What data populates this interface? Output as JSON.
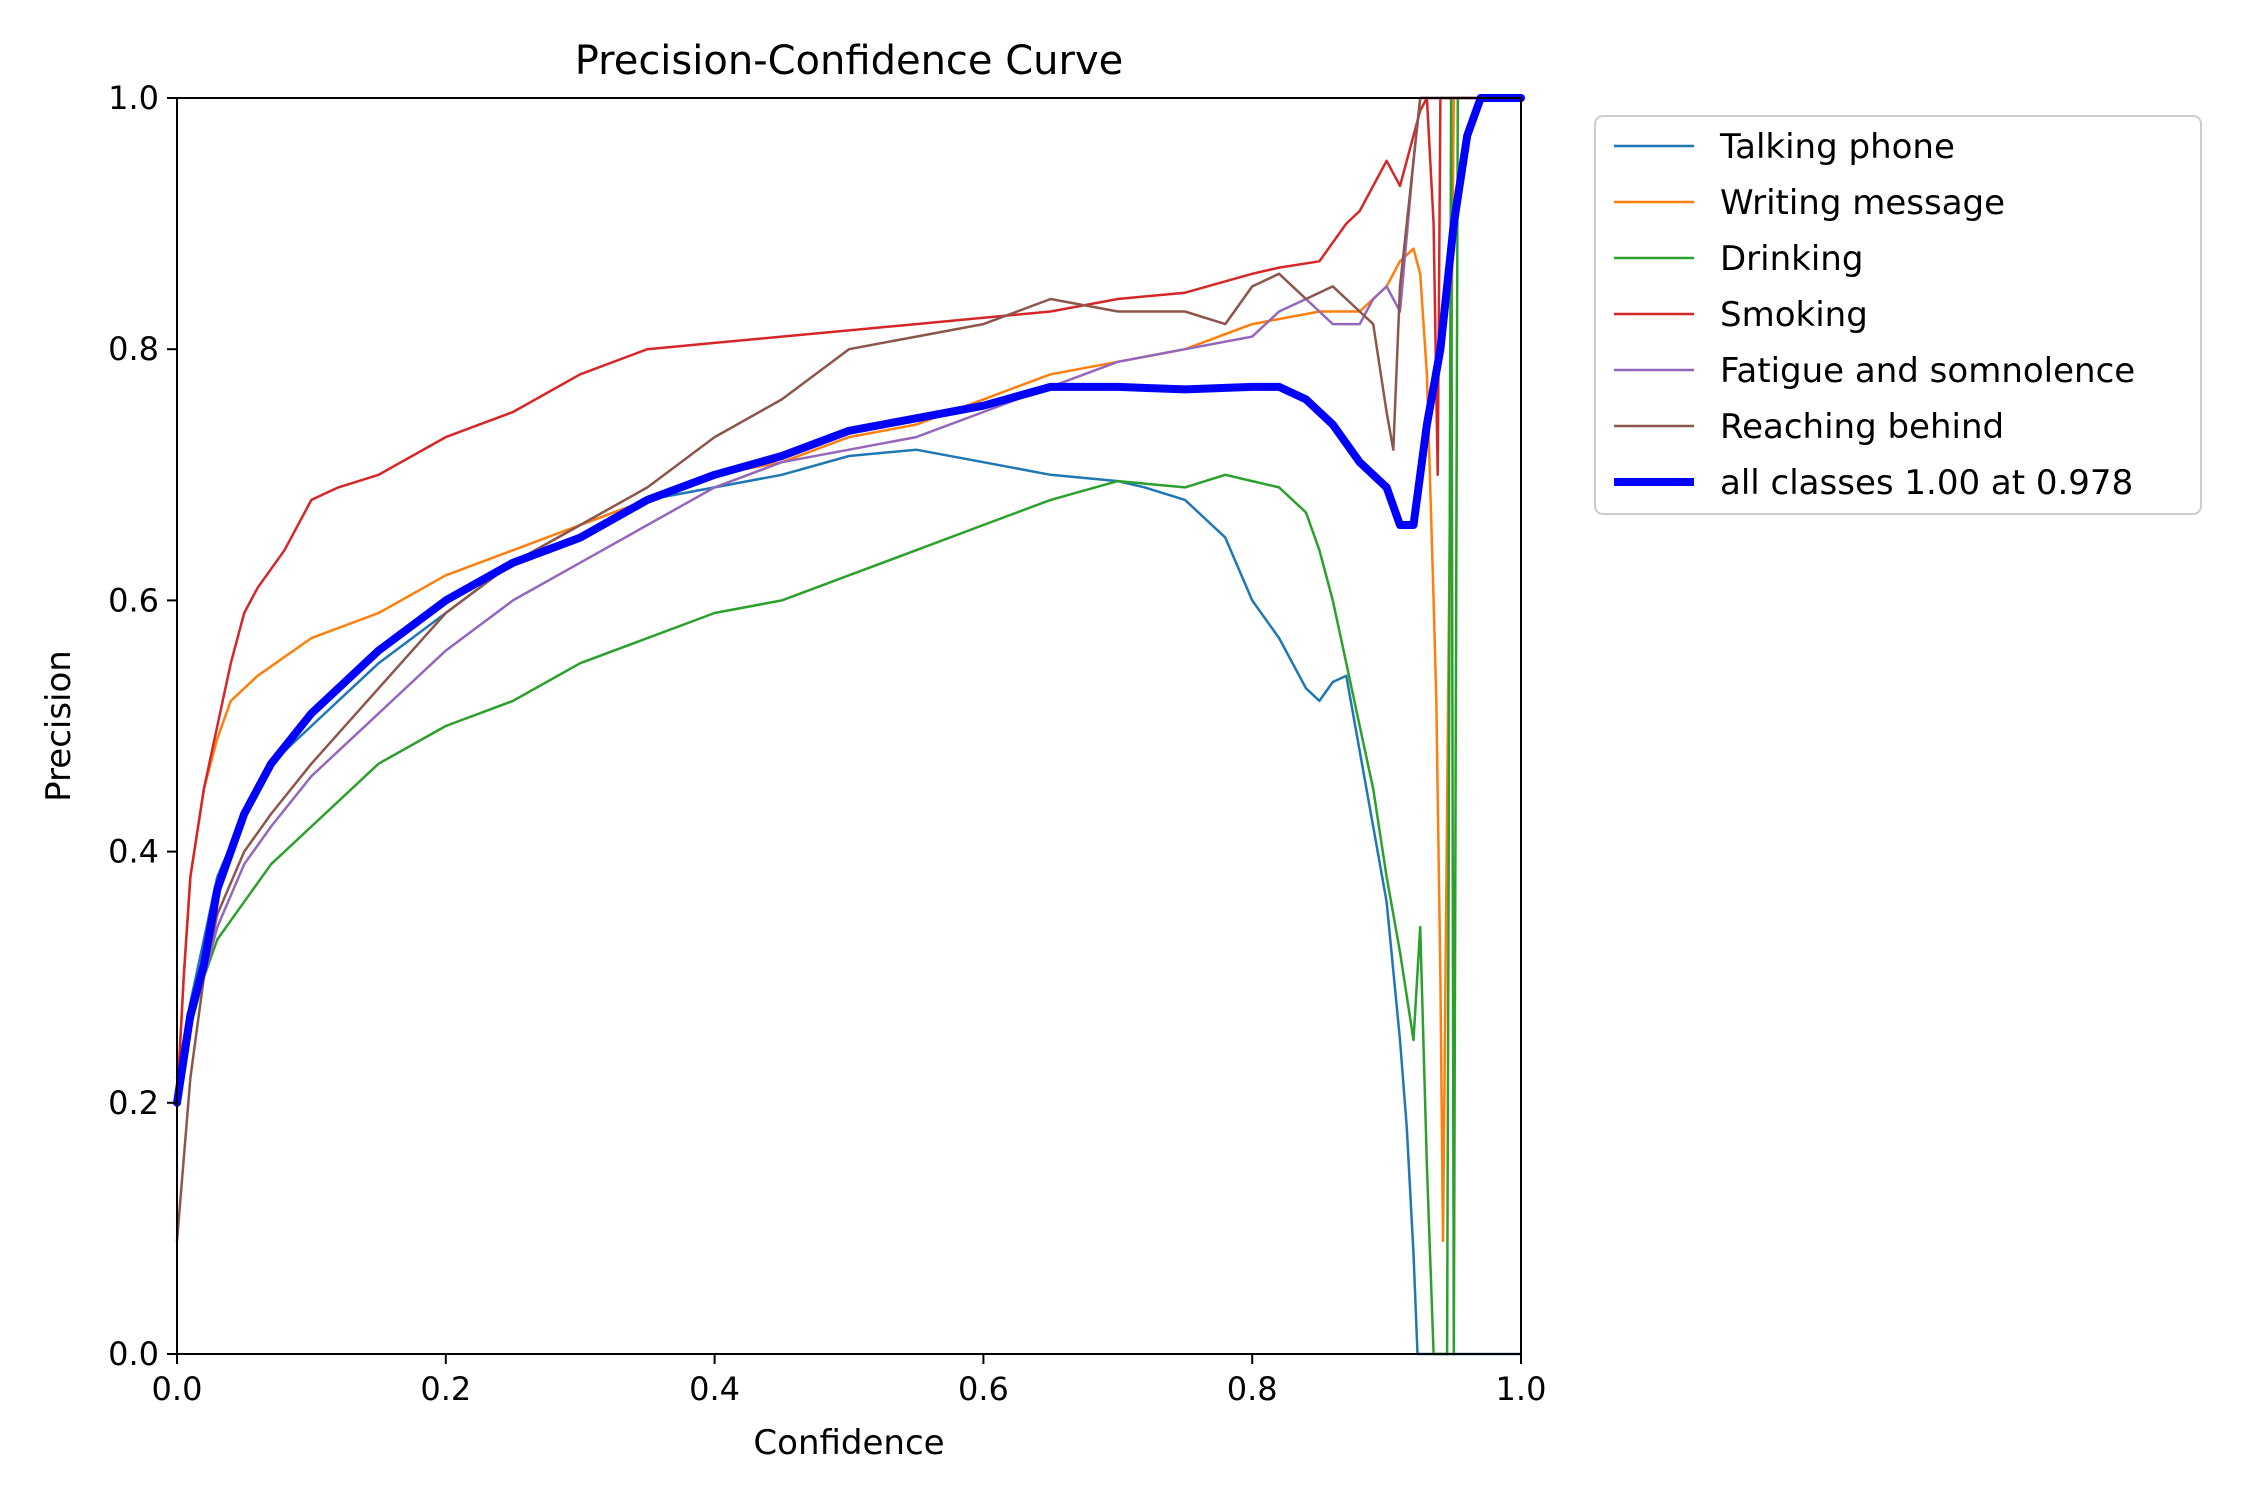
{
  "chart_data": {
    "type": "line",
    "title": "Precision-Confidence Curve",
    "xlabel": "Confidence",
    "ylabel": "Precision",
    "xlim": [
      0,
      1
    ],
    "ylim": [
      0,
      1
    ],
    "xticks": [
      "0.0",
      "0.2",
      "0.4",
      "0.6",
      "0.8",
      "1.0"
    ],
    "yticks": [
      "0.0",
      "0.2",
      "0.4",
      "0.6",
      "0.8",
      "1.0"
    ],
    "grid": false,
    "legend_position": "outside right, top",
    "series": [
      {
        "name": "Talking phone",
        "color": "#1f77b4",
        "width": "thin",
        "x": [
          0.0,
          0.01,
          0.02,
          0.03,
          0.05,
          0.07,
          0.1,
          0.15,
          0.2,
          0.25,
          0.3,
          0.35,
          0.4,
          0.45,
          0.5,
          0.55,
          0.6,
          0.65,
          0.7,
          0.72,
          0.75,
          0.78,
          0.8,
          0.82,
          0.84,
          0.85,
          0.86,
          0.87,
          0.88,
          0.89,
          0.9,
          0.91,
          0.915,
          0.92,
          0.923,
          0.93,
          1.0
        ],
        "y": [
          0.22,
          0.28,
          0.33,
          0.38,
          0.43,
          0.47,
          0.5,
          0.55,
          0.59,
          0.63,
          0.66,
          0.68,
          0.69,
          0.7,
          0.715,
          0.72,
          0.71,
          0.7,
          0.695,
          0.69,
          0.68,
          0.65,
          0.6,
          0.57,
          0.53,
          0.52,
          0.535,
          0.54,
          0.48,
          0.42,
          0.36,
          0.25,
          0.18,
          0.08,
          0.0,
          0.0,
          0.0
        ]
      },
      {
        "name": "Writing message",
        "color": "#ff7f0e",
        "width": "thin",
        "x": [
          0.0,
          0.005,
          0.01,
          0.02,
          0.03,
          0.04,
          0.06,
          0.1,
          0.15,
          0.2,
          0.25,
          0.3,
          0.35,
          0.4,
          0.45,
          0.5,
          0.55,
          0.6,
          0.65,
          0.7,
          0.75,
          0.8,
          0.85,
          0.88,
          0.9,
          0.91,
          0.92,
          0.925,
          0.93,
          0.935,
          0.937,
          0.94,
          0.942,
          0.95,
          1.0
        ],
        "y": [
          0.2,
          0.3,
          0.38,
          0.45,
          0.49,
          0.52,
          0.54,
          0.57,
          0.59,
          0.62,
          0.64,
          0.66,
          0.68,
          0.7,
          0.71,
          0.73,
          0.74,
          0.76,
          0.78,
          0.79,
          0.8,
          0.82,
          0.83,
          0.83,
          0.85,
          0.87,
          0.88,
          0.86,
          0.78,
          0.6,
          0.52,
          0.3,
          0.09,
          1.0,
          1.0
        ]
      },
      {
        "name": "Drinking",
        "color": "#2ca02c",
        "width": "thin",
        "x": [
          0.0,
          0.01,
          0.02,
          0.03,
          0.05,
          0.07,
          0.1,
          0.15,
          0.2,
          0.25,
          0.3,
          0.35,
          0.4,
          0.45,
          0.5,
          0.55,
          0.6,
          0.65,
          0.7,
          0.75,
          0.78,
          0.8,
          0.82,
          0.84,
          0.85,
          0.86,
          0.87,
          0.88,
          0.89,
          0.9,
          0.91,
          0.92,
          0.925,
          0.93,
          0.935,
          0.94,
          0.945,
          0.948,
          0.95,
          0.953,
          1.0
        ],
        "y": [
          0.2,
          0.26,
          0.3,
          0.33,
          0.36,
          0.39,
          0.42,
          0.47,
          0.5,
          0.52,
          0.55,
          0.57,
          0.59,
          0.6,
          0.62,
          0.64,
          0.66,
          0.68,
          0.695,
          0.69,
          0.7,
          0.695,
          0.69,
          0.67,
          0.64,
          0.6,
          0.55,
          0.5,
          0.45,
          0.38,
          0.32,
          0.25,
          0.34,
          0.15,
          0.0,
          0.0,
          0.0,
          1.0,
          0.0,
          1.0,
          1.0
        ]
      },
      {
        "name": "Smoking",
        "color": "#d62728",
        "width": "thin",
        "x": [
          0.0,
          0.005,
          0.01,
          0.02,
          0.03,
          0.04,
          0.05,
          0.06,
          0.08,
          0.1,
          0.12,
          0.15,
          0.2,
          0.25,
          0.3,
          0.35,
          0.4,
          0.45,
          0.5,
          0.55,
          0.6,
          0.65,
          0.7,
          0.75,
          0.8,
          0.82,
          0.85,
          0.87,
          0.88,
          0.89,
          0.9,
          0.91,
          0.92,
          0.925,
          0.93,
          0.935,
          0.938,
          0.94,
          1.0
        ],
        "y": [
          0.2,
          0.3,
          0.38,
          0.45,
          0.5,
          0.55,
          0.59,
          0.61,
          0.64,
          0.68,
          0.69,
          0.7,
          0.73,
          0.75,
          0.78,
          0.8,
          0.805,
          0.81,
          0.815,
          0.82,
          0.825,
          0.83,
          0.84,
          0.845,
          0.86,
          0.865,
          0.87,
          0.9,
          0.91,
          0.93,
          0.95,
          0.93,
          0.97,
          0.99,
          1.0,
          0.9,
          0.7,
          1.0,
          1.0
        ]
      },
      {
        "name": "Fatigue and somnolence",
        "color": "#9467bd",
        "width": "thin",
        "x": [
          0.0,
          0.01,
          0.02,
          0.03,
          0.05,
          0.07,
          0.1,
          0.15,
          0.2,
          0.25,
          0.3,
          0.35,
          0.4,
          0.45,
          0.5,
          0.55,
          0.6,
          0.65,
          0.7,
          0.75,
          0.8,
          0.82,
          0.84,
          0.86,
          0.88,
          0.89,
          0.9,
          0.91,
          0.92,
          0.925,
          0.93,
          1.0
        ],
        "y": [
          0.2,
          0.27,
          0.3,
          0.34,
          0.39,
          0.42,
          0.46,
          0.51,
          0.56,
          0.6,
          0.63,
          0.66,
          0.69,
          0.71,
          0.72,
          0.73,
          0.75,
          0.77,
          0.79,
          0.8,
          0.81,
          0.83,
          0.84,
          0.82,
          0.82,
          0.84,
          0.85,
          0.83,
          0.95,
          1.0,
          1.0,
          1.0
        ]
      },
      {
        "name": "Reaching behind",
        "color": "#8c564b",
        "width": "thin",
        "x": [
          0.0,
          0.01,
          0.02,
          0.03,
          0.05,
          0.07,
          0.1,
          0.15,
          0.2,
          0.25,
          0.3,
          0.35,
          0.4,
          0.45,
          0.5,
          0.55,
          0.6,
          0.65,
          0.7,
          0.75,
          0.78,
          0.8,
          0.82,
          0.84,
          0.86,
          0.88,
          0.89,
          0.9,
          0.905,
          0.91,
          0.92,
          0.925,
          0.93,
          1.0
        ],
        "y": [
          0.09,
          0.22,
          0.3,
          0.35,
          0.4,
          0.43,
          0.47,
          0.53,
          0.59,
          0.63,
          0.66,
          0.69,
          0.73,
          0.76,
          0.8,
          0.81,
          0.82,
          0.84,
          0.83,
          0.83,
          0.82,
          0.85,
          0.86,
          0.84,
          0.85,
          0.83,
          0.82,
          0.75,
          0.72,
          0.85,
          0.95,
          1.0,
          1.0,
          1.0
        ]
      },
      {
        "name": "all classes 1.00 at 0.978",
        "color": "#0000ff",
        "width": "thick",
        "x": [
          0.0,
          0.01,
          0.02,
          0.03,
          0.05,
          0.07,
          0.1,
          0.15,
          0.2,
          0.25,
          0.3,
          0.35,
          0.4,
          0.45,
          0.5,
          0.55,
          0.6,
          0.65,
          0.7,
          0.75,
          0.8,
          0.82,
          0.84,
          0.86,
          0.88,
          0.9,
          0.91,
          0.92,
          0.925,
          0.93,
          0.94,
          0.95,
          0.96,
          0.97,
          0.978,
          0.99,
          1.0
        ],
        "y": [
          0.2,
          0.27,
          0.31,
          0.37,
          0.43,
          0.47,
          0.51,
          0.56,
          0.6,
          0.63,
          0.65,
          0.68,
          0.7,
          0.715,
          0.735,
          0.745,
          0.755,
          0.77,
          0.77,
          0.768,
          0.77,
          0.77,
          0.76,
          0.74,
          0.71,
          0.69,
          0.66,
          0.66,
          0.7,
          0.74,
          0.8,
          0.9,
          0.97,
          1.0,
          1.0,
          1.0,
          1.0
        ]
      }
    ]
  }
}
